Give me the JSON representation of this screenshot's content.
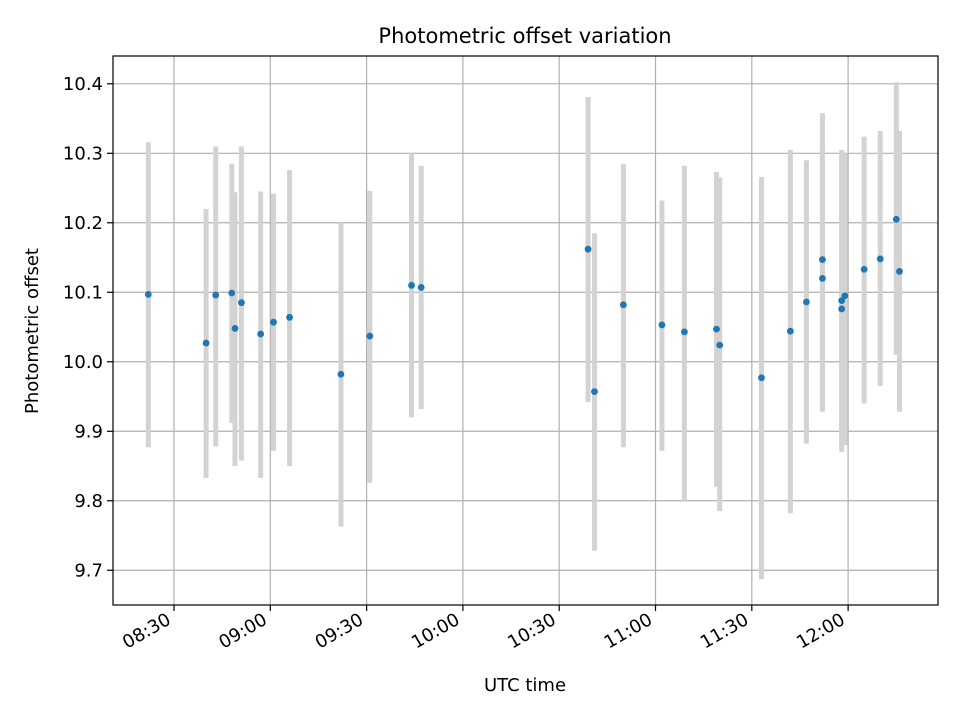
{
  "chart_data": {
    "type": "scatter",
    "title": "Photometric offset variation",
    "xlabel": "UTC time",
    "ylabel": "Photometric offset",
    "xlim": [
      "08:11",
      "12:28"
    ],
    "ylim": [
      9.65,
      10.44
    ],
    "x_ticks": [
      "08:30",
      "09:00",
      "09:30",
      "10:00",
      "10:30",
      "11:00",
      "11:30",
      "12:00"
    ],
    "y_ticks": [
      "9.7",
      "9.8",
      "9.9",
      "10.0",
      "10.1",
      "10.2",
      "10.3",
      "10.4"
    ],
    "grid": true,
    "colors": {
      "points": "#1f77b4",
      "errorbars": "#d3d3d3",
      "grid": "#b0b0b0"
    },
    "series": [
      {
        "name": "offset",
        "points": [
          {
            "t": "08:22",
            "y": 10.097,
            "lo": 9.877,
            "hi": 10.316
          },
          {
            "t": "08:40",
            "y": 10.027,
            "lo": 9.833,
            "hi": 10.22
          },
          {
            "t": "08:43",
            "y": 10.096,
            "lo": 9.878,
            "hi": 10.31
          },
          {
            "t": "08:48",
            "y": 10.099,
            "lo": 9.912,
            "hi": 10.285
          },
          {
            "t": "08:49",
            "y": 10.048,
            "lo": 9.85,
            "hi": 10.244
          },
          {
            "t": "08:51",
            "y": 10.085,
            "lo": 9.858,
            "hi": 10.31
          },
          {
            "t": "08:57",
            "y": 10.04,
            "lo": 9.833,
            "hi": 10.245
          },
          {
            "t": "09:01",
            "y": 10.057,
            "lo": 9.872,
            "hi": 10.242
          },
          {
            "t": "09:06",
            "y": 10.064,
            "lo": 9.85,
            "hi": 10.276
          },
          {
            "t": "09:22",
            "y": 9.982,
            "lo": 9.763,
            "hi": 10.2
          },
          {
            "t": "09:31",
            "y": 10.037,
            "lo": 9.826,
            "hi": 10.246
          },
          {
            "t": "09:44",
            "y": 10.11,
            "lo": 9.92,
            "hi": 10.3
          },
          {
            "t": "09:47",
            "y": 10.107,
            "lo": 9.932,
            "hi": 10.282
          },
          {
            "t": "10:39",
            "y": 10.162,
            "lo": 9.942,
            "hi": 10.381
          },
          {
            "t": "10:41",
            "y": 9.957,
            "lo": 9.728,
            "hi": 10.185
          },
          {
            "t": "10:50",
            "y": 10.082,
            "lo": 9.877,
            "hi": 10.285
          },
          {
            "t": "11:02",
            "y": 10.053,
            "lo": 9.872,
            "hi": 10.232
          },
          {
            "t": "11:09",
            "y": 10.043,
            "lo": 9.8,
            "hi": 10.282
          },
          {
            "t": "11:19",
            "y": 10.047,
            "lo": 9.82,
            "hi": 10.273
          },
          {
            "t": "11:20",
            "y": 10.024,
            "lo": 9.785,
            "hi": 10.265
          },
          {
            "t": "11:33",
            "y": 9.977,
            "lo": 9.687,
            "hi": 10.266
          },
          {
            "t": "11:42",
            "y": 10.044,
            "lo": 9.782,
            "hi": 10.305
          },
          {
            "t": "11:47",
            "y": 10.086,
            "lo": 9.882,
            "hi": 10.29
          },
          {
            "t": "11:52",
            "y": 10.147,
            "lo": 9.935,
            "hi": 10.358
          },
          {
            "t": "11:52",
            "y": 10.12,
            "lo": 9.928,
            "hi": 10.312
          },
          {
            "t": "11:58",
            "y": 10.088,
            "lo": 9.87,
            "hi": 10.305
          },
          {
            "t": "11:58",
            "y": 10.076,
            "lo": 9.88,
            "hi": 10.3
          },
          {
            "t": "11:59",
            "y": 10.095,
            "lo": 9.88,
            "hi": 10.3
          },
          {
            "t": "12:05",
            "y": 10.133,
            "lo": 9.94,
            "hi": 10.324
          },
          {
            "t": "12:10",
            "y": 10.148,
            "lo": 9.965,
            "hi": 10.332
          },
          {
            "t": "12:15",
            "y": 10.205,
            "lo": 10.01,
            "hi": 10.402
          },
          {
            "t": "12:16",
            "y": 10.13,
            "lo": 9.928,
            "hi": 10.332
          }
        ]
      }
    ]
  }
}
